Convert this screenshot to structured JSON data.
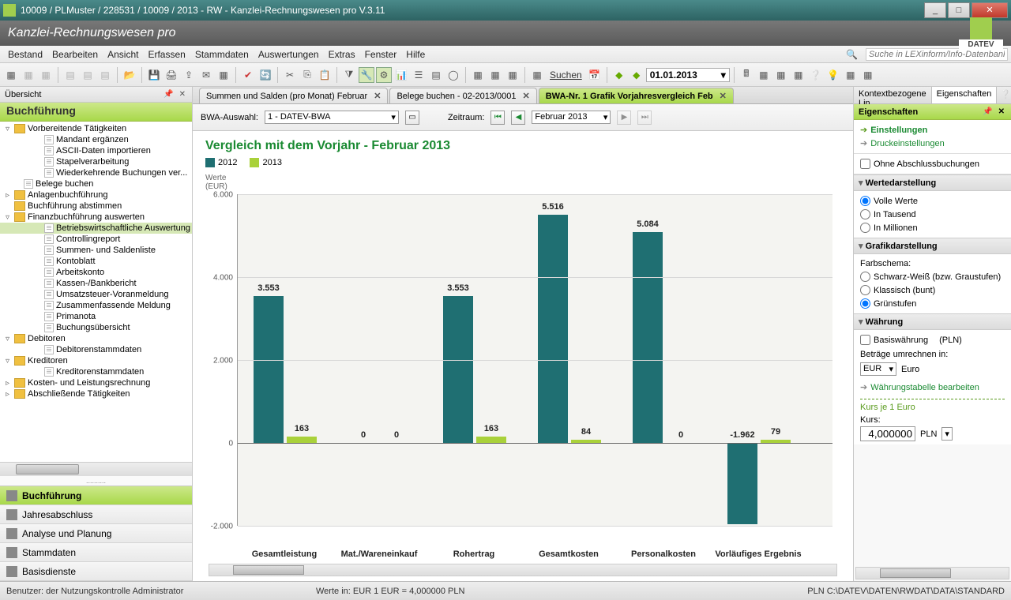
{
  "window": {
    "title": "10009 / PLMuster / 228531 / 10009 / 2013 - RW - Kanzlei-Rechnungswesen pro V.3.11"
  },
  "banner": {
    "product": "Kanzlei-Rechnungswesen pro",
    "brand": "DATEV"
  },
  "menu": {
    "items": [
      "Bestand",
      "Bearbeiten",
      "Ansicht",
      "Erfassen",
      "Stammdaten",
      "Auswertungen",
      "Extras",
      "Fenster",
      "Hilfe"
    ],
    "search_placeholder": "Suche in LEXinform/Info-Datenbank"
  },
  "toolbar": {
    "date": "01.01.2013",
    "suchen": "Suchen"
  },
  "left": {
    "panel_title": "Übersicht",
    "module": "Buchführung",
    "tree": [
      {
        "l": 0,
        "exp": "▿",
        "ico": "f",
        "label": "Vorbereitende Tätigkeiten"
      },
      {
        "l": 2,
        "ico": "d",
        "label": "Mandant ergänzen"
      },
      {
        "l": 2,
        "ico": "d",
        "label": "ASCII-Daten importieren"
      },
      {
        "l": 2,
        "ico": "d",
        "label": "Stapelverarbeitung"
      },
      {
        "l": 2,
        "ico": "d",
        "label": "Wiederkehrende Buchungen ver..."
      },
      {
        "l": 1,
        "ico": "d",
        "label": "Belege buchen"
      },
      {
        "l": 0,
        "exp": "▹",
        "ico": "f",
        "label": "Anlagenbuchführung"
      },
      {
        "l": 0,
        "ico": "f",
        "label": "Buchführung abstimmen"
      },
      {
        "l": 0,
        "exp": "▿",
        "ico": "f",
        "label": "Finanzbuchführung auswerten"
      },
      {
        "l": 2,
        "ico": "d",
        "label": "Betriebswirtschaftliche Auswertung",
        "sel": true
      },
      {
        "l": 2,
        "ico": "d",
        "label": "Controllingreport"
      },
      {
        "l": 2,
        "ico": "d",
        "label": "Summen- und Saldenliste"
      },
      {
        "l": 2,
        "ico": "d",
        "label": "Kontoblatt"
      },
      {
        "l": 2,
        "ico": "d",
        "label": "Arbeitskonto"
      },
      {
        "l": 2,
        "ico": "d",
        "label": "Kassen-/Bankbericht"
      },
      {
        "l": 2,
        "ico": "d",
        "label": "Umsatzsteuer-Voranmeldung"
      },
      {
        "l": 2,
        "ico": "d",
        "label": "Zusammenfassende Meldung"
      },
      {
        "l": 2,
        "ico": "d",
        "label": "Primanota"
      },
      {
        "l": 2,
        "ico": "d",
        "label": "Buchungsübersicht"
      },
      {
        "l": 0,
        "exp": "▿",
        "ico": "f",
        "label": "Debitoren"
      },
      {
        "l": 2,
        "ico": "d",
        "label": "Debitorenstammdaten"
      },
      {
        "l": 0,
        "exp": "▿",
        "ico": "f",
        "label": "Kreditoren"
      },
      {
        "l": 2,
        "ico": "d",
        "label": "Kreditorenstammdaten"
      },
      {
        "l": 0,
        "exp": "▹",
        "ico": "f",
        "label": "Kosten- und Leistungsrechnung"
      },
      {
        "l": 0,
        "exp": "▹",
        "ico": "f",
        "label": "Abschließende Tätigkeiten"
      }
    ],
    "nav": [
      "Buchführung",
      "Jahresabschluss",
      "Analyse und Planung",
      "Stammdaten",
      "Basisdienste"
    ]
  },
  "tabs": [
    {
      "label": "Summen und Salden (pro Monat) Februar",
      "active": false
    },
    {
      "label": "Belege buchen  - 02-2013/0001",
      "active": false
    },
    {
      "label": "BWA-Nr. 1 Grafik Vorjahresvergleich  Feb",
      "active": true
    }
  ],
  "controls": {
    "bwa_label": "BWA-Auswahl:",
    "bwa_value": "1 - DATEV-BWA",
    "period_label": "Zeitraum:",
    "period_value": "Februar 2013"
  },
  "chart": {
    "title": "Vergleich mit dem Vorjahr - Februar 2013",
    "axis_label": "Werte\n(EUR)",
    "series": [
      {
        "name": "2012",
        "color": "#1f6f72"
      },
      {
        "name": "2013",
        "color": "#a9d13a"
      }
    ],
    "ymin": -2000,
    "ymax": 6000,
    "ystep": 2000,
    "categories": [
      "Gesamtleistung",
      "Mat./Wareneinkauf",
      "Rohertrag",
      "Gesamtkosten",
      "Personalkosten",
      "Vorläufiges Ergebnis"
    ],
    "data2012": [
      3553,
      0,
      3553,
      5516,
      5084,
      -1962
    ],
    "data2013": [
      163,
      0,
      163,
      84,
      0,
      79
    ],
    "labels2012": [
      "3.553",
      "0",
      "3.553",
      "5.516",
      "5.084",
      "-1.962"
    ],
    "labels2013": [
      "163",
      "0",
      "163",
      "84",
      "0",
      "79"
    ],
    "background": "#f4f4f1",
    "grid_color": "#d8d8d8"
  },
  "right": {
    "tab1": "Kontextbezogene Lin...",
    "tab2": "Eigenschaften",
    "header": "Eigenschaften",
    "link_settings": "Einstellungen",
    "link_print": "Druckeinstellungen",
    "chk_abschluss": "Ohne Abschlussbuchungen",
    "sec_werte": "Wertedarstellung",
    "opt_werte": [
      "Volle Werte",
      "In Tausend",
      "In Millionen"
    ],
    "sec_grafik": "Grafikdarstellung",
    "farbschema": "Farbschema:",
    "opt_grafik": [
      "Schwarz-Weiß (bzw. Graustufen)",
      "Klassisch (bunt)",
      "Grünstufen"
    ],
    "sec_currency": "Währung",
    "base_label": "Basiswährung",
    "base_value": "(PLN)",
    "convert_label": "Beträge umrechnen in:",
    "cur_code": "EUR",
    "cur_name": "Euro",
    "link_table": "Währungstabelle bearbeiten",
    "kurs_hdr": "Kurs je 1 Euro",
    "kurs_label": "Kurs:",
    "kurs_value": "4,000000",
    "kurs_unit": "PLN"
  },
  "status": {
    "user": "Benutzer: der Nutzungskontrolle Administrator",
    "mid": "Werte in: EUR    1 EUR = 4,000000 PLN",
    "right": "PLN   C:\\DATEV\\DATEN\\RWDAT\\DATA\\STANDARD"
  }
}
